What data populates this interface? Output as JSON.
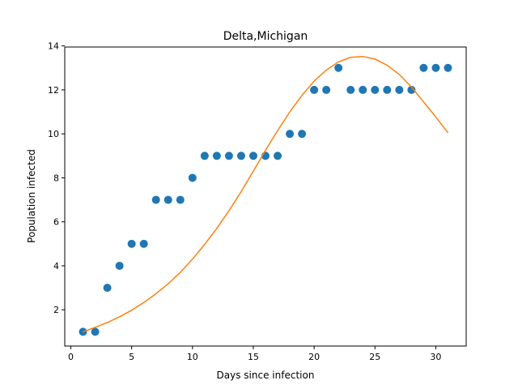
{
  "chart_data": {
    "type": "scatter",
    "title": "Delta,Michigan",
    "xlabel": "Days since infection",
    "ylabel": "Population infected",
    "xlim": [
      -0.5,
      32.5
    ],
    "ylim": [
      0.35,
      13.95
    ],
    "xticks": [
      0,
      5,
      10,
      15,
      20,
      25,
      30
    ],
    "yticks": [
      2,
      4,
      6,
      8,
      10,
      12,
      14
    ],
    "grid": false,
    "series": [
      {
        "kind": "points",
        "color": "#1f77b4",
        "x": [
          1,
          2,
          3,
          4,
          5,
          6,
          7,
          8,
          9,
          10,
          11,
          12,
          13,
          14,
          15,
          16,
          17,
          18,
          19,
          20,
          21,
          22,
          23,
          24,
          25,
          26,
          27,
          28,
          29,
          30,
          31
        ],
        "y": [
          1,
          1,
          3,
          4,
          5,
          5,
          7,
          7,
          7,
          8,
          9,
          9,
          9,
          9,
          9,
          9,
          9,
          10,
          10,
          12,
          12,
          13,
          12,
          12,
          12,
          12,
          12,
          12,
          13,
          13,
          13
        ]
      },
      {
        "kind": "line",
        "color": "#ff7f0e",
        "x": [
          1,
          2,
          3,
          4,
          5,
          6,
          7,
          8,
          9,
          10,
          11,
          12,
          13,
          14,
          15,
          16,
          17,
          18,
          19,
          20,
          21,
          22,
          23,
          24,
          25,
          26,
          27,
          28,
          29,
          30,
          31
        ],
        "y": [
          1.0,
          1.2,
          1.42,
          1.68,
          1.98,
          2.33,
          2.73,
          3.18,
          3.7,
          4.3,
          4.97,
          5.7,
          6.5,
          7.37,
          8.3,
          9.25,
          10.15,
          11.0,
          11.75,
          12.4,
          12.9,
          13.27,
          13.48,
          13.52,
          13.4,
          13.12,
          12.7,
          12.13,
          11.45,
          10.77,
          10.05
        ]
      }
    ]
  }
}
